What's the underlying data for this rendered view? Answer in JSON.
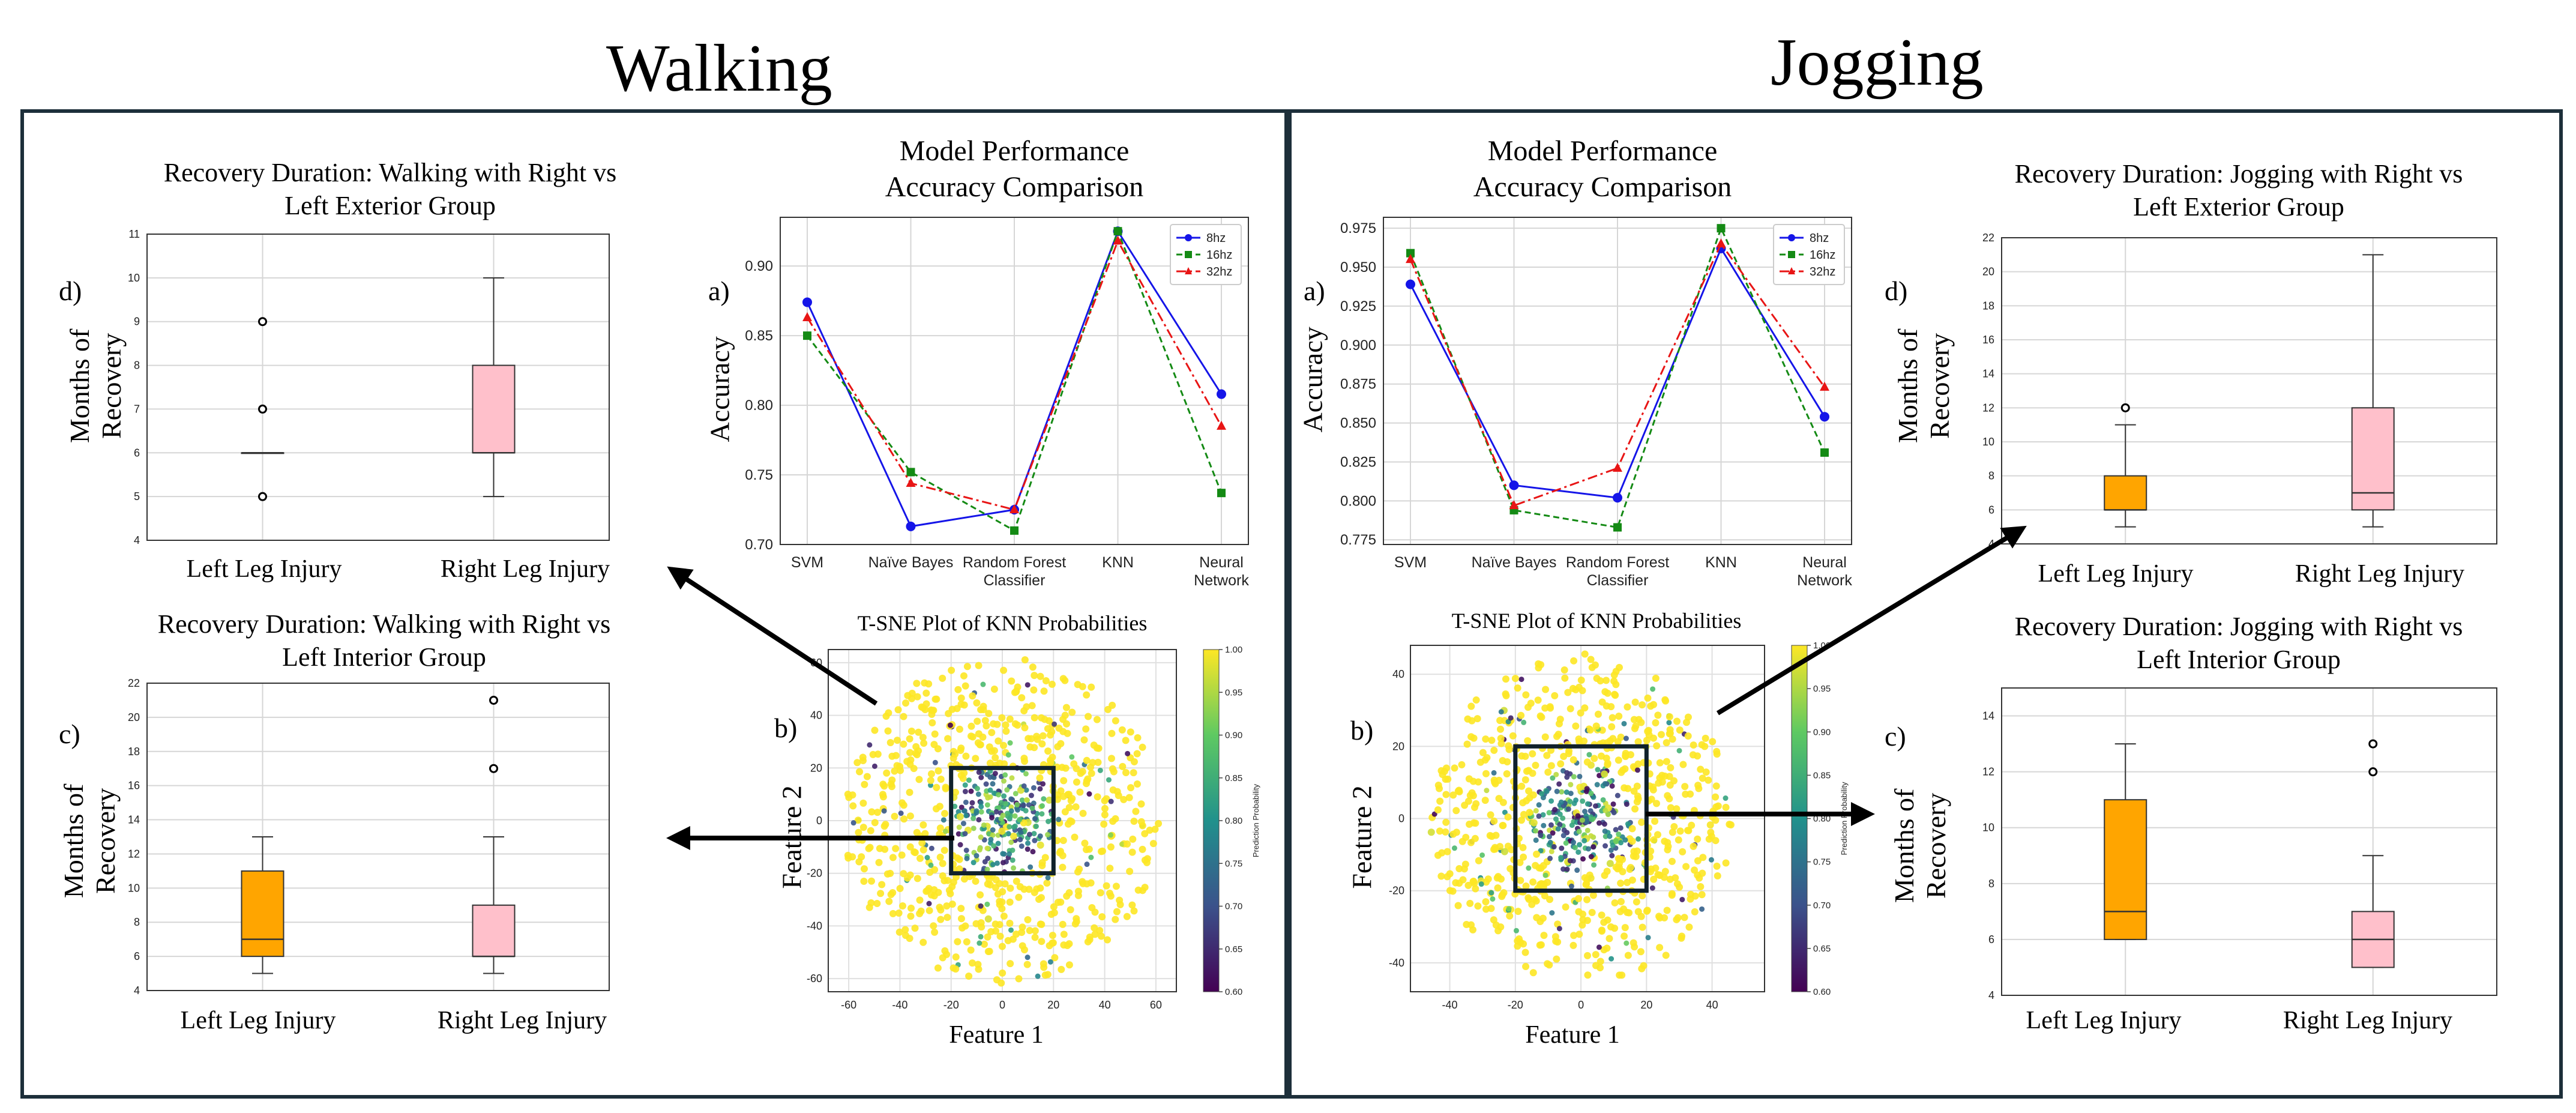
{
  "titles": {
    "walking": "Walking",
    "jogging": "Jogging"
  },
  "panel_letters": {
    "a": "a)",
    "b": "b)",
    "c": "c)",
    "d": "d)"
  },
  "model_title": "Model Performance\nAccuracy Comparison",
  "tsne_title": "T-SNE Plot of KNN Probabilities",
  "tsne_xlabel": "Feature 1",
  "tsne_ylabel": "Feature 2",
  "accuracy_label": "Accuracy",
  "months_label": "Months of\nRecovery",
  "colorbar_label": "Prediction Probability",
  "colors": {
    "blue": "#1515e8",
    "green": "#148a14",
    "red": "#e81515",
    "orange": "#ffa500",
    "pink": "#ffc0cb",
    "frame": "#1d2f3a"
  },
  "chart_data": [
    {
      "id": "walk-accuracy",
      "type": "line",
      "title": "Model Performance\nAccuracy Comparison",
      "ylabel": "Accuracy",
      "categories": [
        "SVM",
        "Naïve Bayes",
        "Random Forest\nClassifier",
        "KNN",
        "Neural\nNetwork"
      ],
      "ylim": [
        0.7,
        0.935
      ],
      "yticks": [
        0.7,
        0.75,
        0.8,
        0.85,
        0.9
      ],
      "legend": "top-right",
      "grid": true,
      "series": [
        {
          "name": "8hz",
          "color": "#1515e8",
          "dash": "",
          "marker": "circle",
          "values": [
            0.874,
            0.713,
            0.725,
            0.925,
            0.808
          ]
        },
        {
          "name": "16hz",
          "color": "#148a14",
          "dash": "10,6",
          "marker": "square",
          "values": [
            0.85,
            0.752,
            0.71,
            0.925,
            0.737
          ]
        },
        {
          "name": "32hz",
          "color": "#e81515",
          "dash": "16,6,4,6",
          "marker": "triangle",
          "values": [
            0.863,
            0.744,
            0.725,
            0.918,
            0.785
          ]
        }
      ]
    },
    {
      "id": "jog-accuracy",
      "type": "line",
      "title": "Model Performance\nAccuracy Comparison",
      "ylabel": "Accuracy",
      "categories": [
        "SVM",
        "Naïve Bayes",
        "Random Forest\nClassifier",
        "KNN",
        "Neural\nNetwork"
      ],
      "ylim": [
        0.772,
        0.982
      ],
      "yticks": [
        0.775,
        0.8,
        0.825,
        0.85,
        0.875,
        0.9,
        0.925,
        0.95,
        0.975
      ],
      "legend": "top-right",
      "grid": true,
      "series": [
        {
          "name": "8hz",
          "color": "#1515e8",
          "dash": "",
          "marker": "circle",
          "values": [
            0.939,
            0.81,
            0.802,
            0.962,
            0.854
          ]
        },
        {
          "name": "16hz",
          "color": "#148a14",
          "dash": "10,6",
          "marker": "square",
          "values": [
            0.959,
            0.794,
            0.783,
            0.975,
            0.831
          ]
        },
        {
          "name": "32hz",
          "color": "#e81515",
          "dash": "16,6,4,6",
          "marker": "triangle",
          "values": [
            0.955,
            0.797,
            0.821,
            0.965,
            0.873
          ]
        }
      ]
    },
    {
      "id": "walk-exterior",
      "type": "box",
      "title": "Recovery Duration: Walking with Right vs\nLeft Exterior Group",
      "ylabel": "Months of\nRecovery",
      "categories": [
        "Left Leg Injury",
        "Right Leg Injury"
      ],
      "ylim": [
        4,
        11
      ],
      "yticks": [
        4,
        5,
        6,
        7,
        8,
        9,
        10,
        11
      ],
      "boxes": [
        {
          "q1": 6,
          "median": 6,
          "q3": 6,
          "whislo": 6,
          "whishi": 6,
          "outliers": [
            5,
            7,
            9
          ],
          "color": "#ffffff"
        },
        {
          "q1": 6,
          "median": 6,
          "q3": 8,
          "whislo": 5,
          "whishi": 10,
          "outliers": [],
          "color": "#ffc0cb"
        }
      ]
    },
    {
      "id": "walk-interior",
      "type": "box",
      "title": "Recovery Duration: Walking with Right vs\nLeft Interior Group",
      "ylabel": "Months of\nRecovery",
      "categories": [
        "Left Leg Injury",
        "Right Leg Injury"
      ],
      "ylim": [
        4,
        22
      ],
      "yticks": [
        4,
        6,
        8,
        10,
        12,
        14,
        16,
        18,
        20,
        22
      ],
      "boxes": [
        {
          "q1": 6,
          "median": 7,
          "q3": 11,
          "whislo": 5,
          "whishi": 13,
          "outliers": [],
          "color": "#ffa500"
        },
        {
          "q1": 6,
          "median": 6,
          "q3": 9,
          "whislo": 5,
          "whishi": 13,
          "outliers": [
            17,
            21
          ],
          "color": "#ffc0cb"
        }
      ]
    },
    {
      "id": "jog-exterior",
      "type": "box",
      "title": "Recovery Duration: Jogging with Right vs\nLeft Exterior Group",
      "ylabel": "Months of\nRecovery",
      "categories": [
        "Left Leg Injury",
        "Right Leg Injury"
      ],
      "ylim": [
        4,
        22
      ],
      "yticks": [
        4,
        6,
        8,
        10,
        12,
        14,
        16,
        18,
        20,
        22
      ],
      "boxes": [
        {
          "q1": 6,
          "median": 6,
          "q3": 8,
          "whislo": 5,
          "whishi": 11,
          "outliers": [
            12
          ],
          "color": "#ffa500"
        },
        {
          "q1": 6,
          "median": 7,
          "q3": 12,
          "whislo": 5,
          "whishi": 21,
          "outliers": [],
          "color": "#ffc0cb"
        }
      ]
    },
    {
      "id": "jog-interior",
      "type": "box",
      "title": "Recovery Duration: Jogging with Right vs\nLeft Interior Group",
      "ylabel": "Months of\nRecovery",
      "categories": [
        "Left Leg Injury",
        "Right Leg Injury"
      ],
      "ylim": [
        4,
        15
      ],
      "yticks": [
        4,
        6,
        8,
        10,
        12,
        14
      ],
      "boxes": [
        {
          "q1": 6,
          "median": 7,
          "q3": 11,
          "whislo": 6,
          "whishi": 13,
          "outliers": [],
          "color": "#ffa500"
        },
        {
          "q1": 5,
          "median": 6,
          "q3": 7,
          "whislo": 5,
          "whishi": 9,
          "outliers": [
            12,
            13
          ],
          "color": "#ffc0cb"
        }
      ]
    },
    {
      "id": "walk-tsne",
      "type": "scatter",
      "title": "T-SNE Plot of KNN Probabilities",
      "xlabel": "Feature 1",
      "ylabel": "Feature 2",
      "xlim": [
        -68,
        68
      ],
      "ylim": [
        -65,
        65
      ],
      "xticks": [
        -60,
        -40,
        -20,
        0,
        20,
        40,
        60
      ],
      "yticks": [
        -60,
        -40,
        -20,
        0,
        20,
        40,
        60
      ],
      "colorbar": {
        "label": "Prediction Probability",
        "range": [
          0.6,
          1.0
        ],
        "ticks": [
          0.6,
          0.65,
          0.7,
          0.75,
          0.8,
          0.85,
          0.9,
          0.95,
          1.0
        ]
      },
      "highlight_box": {
        "x": [
          -20,
          20
        ],
        "y": [
          -20,
          20
        ]
      },
      "point_spread": 62
    },
    {
      "id": "jog-tsne",
      "type": "scatter",
      "title": "T-SNE Plot of KNN Probabilities",
      "xlabel": "Feature 1",
      "ylabel": "Feature 2",
      "xlim": [
        -52,
        56
      ],
      "ylim": [
        -48,
        48
      ],
      "xticks": [
        -40,
        -20,
        0,
        20,
        40
      ],
      "yticks": [
        -40,
        -20,
        0,
        20,
        40
      ],
      "colorbar": {
        "label": "Prediction Probability",
        "range": [
          0.6,
          1.0
        ],
        "ticks": [
          0.6,
          0.65,
          0.7,
          0.75,
          0.8,
          0.85,
          0.9,
          0.95,
          1.0
        ]
      },
      "highlight_box": {
        "x": [
          -20,
          20
        ],
        "y": [
          -20,
          20
        ]
      },
      "point_spread": 46
    }
  ]
}
